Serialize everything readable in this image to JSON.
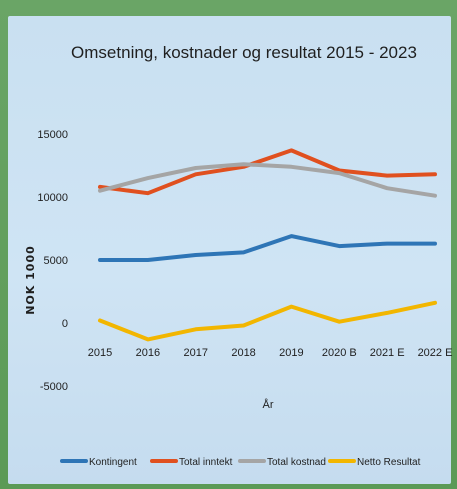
{
  "chart_data": {
    "type": "line",
    "title": "Omsetning, kostnader og resultat 2015 - 2023",
    "xlabel": "År",
    "ylabel": "NOK 1000",
    "categories": [
      "2015",
      "2016",
      "2017",
      "2018",
      "2019",
      "2020 B",
      "2021 E",
      "2022 E"
    ],
    "ylim": [
      -5000,
      15000
    ],
    "yticks": [
      "15000",
      "10000",
      "5000",
      "0",
      "-5000"
    ],
    "grid": false,
    "legend_position": "bottom",
    "series": [
      {
        "name": "Kontingent",
        "color": "#2e75b6",
        "values": [
          5000,
          5000,
          5400,
          5600,
          6900,
          6100,
          6300,
          6300
        ]
      },
      {
        "name": "Total inntekt",
        "color": "#e0501f",
        "values": [
          10800,
          10300,
          11800,
          12400,
          13700,
          12100,
          11700,
          11800
        ]
      },
      {
        "name": "Total kostnad",
        "color": "#a5a5a5",
        "values": [
          10500,
          11500,
          12300,
          12600,
          12400,
          11900,
          10700,
          10100
        ]
      },
      {
        "name": "Netto Resultat",
        "color": "#f2b600",
        "values": [
          200,
          -1300,
          -500,
          -200,
          1300,
          100,
          800,
          1600
        ]
      }
    ]
  }
}
